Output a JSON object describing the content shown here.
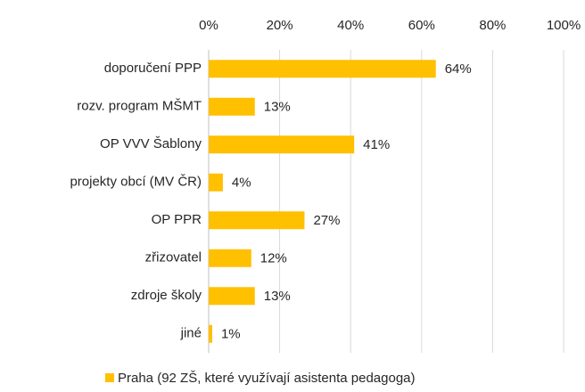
{
  "chart_data": {
    "type": "bar",
    "orientation": "horizontal",
    "categories": [
      "doporučení PPP",
      "rozv. program MŠMT",
      "OP VVV Šablony",
      "projekty obcí (MV ČR)",
      "OP PPR",
      "zřizovatel",
      "zdroje školy",
      "jiné"
    ],
    "series": [
      {
        "name": "Praha (92 ZŠ, které využívají asistenta pedagoga)",
        "color": "#ffc000",
        "values": [
          64,
          13,
          41,
          4,
          27,
          12,
          13,
          1
        ],
        "value_labels": [
          "64%",
          "13%",
          "41%",
          "4%",
          "27%",
          "12%",
          "13%",
          "1%"
        ]
      }
    ],
    "xlim": [
      0,
      100
    ],
    "xticks": [
      {
        "value": 0,
        "label": "0%"
      },
      {
        "value": 20,
        "label": "20%"
      },
      {
        "value": 40,
        "label": "40%"
      },
      {
        "value": 60,
        "label": "60%"
      },
      {
        "value": 80,
        "label": "80%"
      },
      {
        "value": 100,
        "label": "100%"
      }
    ],
    "x_axis_position": "top",
    "grid": true,
    "legend": "bottom"
  }
}
